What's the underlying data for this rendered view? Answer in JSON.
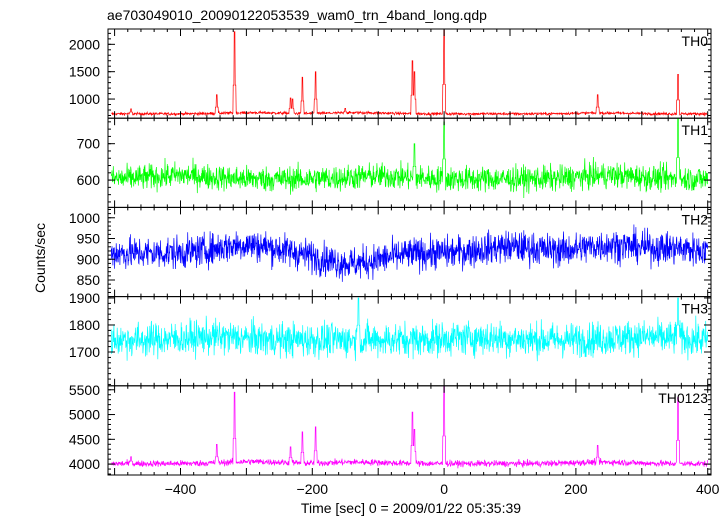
{
  "chart_data": {
    "type": "line",
    "title": "ae703049010_20090122053539_wam0_trn_4band_long.qdp",
    "xlabel": "Time [sec] 0 = 2009/01/22 05:35:39",
    "ylabel": "Counts/sec",
    "xlim": [
      -510,
      405
    ],
    "x_ticks": [
      -400,
      -200,
      0,
      200,
      400
    ],
    "x_tick_labels": [
      "−400",
      "−200",
      "0",
      "200",
      "400"
    ],
    "grid": false,
    "legend": "none",
    "panels": [
      {
        "name": "TH0",
        "color": "#ff0000",
        "ylim": [
          650,
          2280
        ],
        "y_ticks": [
          1000,
          1500,
          2000
        ],
        "y_tick_labels": [
          "1000",
          "1500",
          "2000"
        ],
        "baseline": 730,
        "noise": 18,
        "peaks": [
          [
            -475,
            820
          ],
          [
            -345,
            1080
          ],
          [
            -318,
            2230
          ],
          [
            -233,
            1020
          ],
          [
            -230,
            1000
          ],
          [
            -215,
            1400
          ],
          [
            -195,
            1500
          ],
          [
            -150,
            830
          ],
          [
            -48,
            1700
          ],
          [
            -45,
            1500
          ],
          [
            0,
            2260
          ],
          [
            233,
            1080
          ],
          [
            355,
            1450
          ]
        ],
        "wander": [
          [
            -290,
            20
          ],
          [
            -130,
            20
          ],
          [
            240,
            15
          ]
        ]
      },
      {
        "name": "TH1",
        "color": "#00ff00",
        "ylim": [
          525,
          770
        ],
        "y_ticks": [
          600,
          700
        ],
        "y_tick_labels": [
          "600",
          "700"
        ],
        "baseline": 603,
        "noise": 25,
        "peaks": [
          [
            -45,
            700
          ],
          [
            0,
            760
          ],
          [
            355,
            770
          ]
        ],
        "wander": [
          [
            -400,
            10
          ],
          [
            -100,
            8
          ],
          [
            250,
            10
          ]
        ]
      },
      {
        "name": "TH2",
        "color": "#0000ff",
        "ylim": [
          810,
          1025
        ],
        "y_ticks": [
          850,
          900,
          950,
          1000
        ],
        "y_tick_labels": [
          "850",
          "900",
          "950",
          "1000"
        ],
        "baseline": 915,
        "noise": 28,
        "peaks": [],
        "wander": [
          [
            -300,
            20
          ],
          [
            -140,
            -25
          ],
          [
            100,
            15
          ],
          [
            250,
            18
          ],
          [
            350,
            10
          ]
        ]
      },
      {
        "name": "TH3",
        "color": "#00ffff",
        "ylim": [
          1575,
          1905
        ],
        "y_ticks": [
          1700,
          1800,
          1900
        ],
        "y_tick_labels": [
          "1700",
          "1800",
          "1900"
        ],
        "baseline": 1745,
        "noise": 45,
        "peaks": [
          [
            -130,
            1900
          ],
          [
            355,
            1900
          ]
        ],
        "wander": [
          [
            -350,
            10
          ],
          [
            50,
            8
          ],
          [
            300,
            10
          ]
        ]
      },
      {
        "name": "TH0123",
        "color": "#ff00ff",
        "ylim": [
          3780,
          5580
        ],
        "y_ticks": [
          4000,
          4500,
          5000,
          5500
        ],
        "y_tick_labels": [
          "4000",
          "4500",
          "5000",
          "5500"
        ],
        "baseline": 4010,
        "noise": 45,
        "peaks": [
          [
            -475,
            4150
          ],
          [
            -345,
            4400
          ],
          [
            -318,
            5450
          ],
          [
            -233,
            4350
          ],
          [
            -215,
            4650
          ],
          [
            -195,
            4750
          ],
          [
            -48,
            5050
          ],
          [
            -45,
            4700
          ],
          [
            0,
            5600
          ],
          [
            233,
            4380
          ],
          [
            355,
            5350
          ]
        ],
        "wander": [
          [
            -290,
            40
          ],
          [
            -130,
            30
          ],
          [
            240,
            30
          ]
        ]
      }
    ]
  }
}
